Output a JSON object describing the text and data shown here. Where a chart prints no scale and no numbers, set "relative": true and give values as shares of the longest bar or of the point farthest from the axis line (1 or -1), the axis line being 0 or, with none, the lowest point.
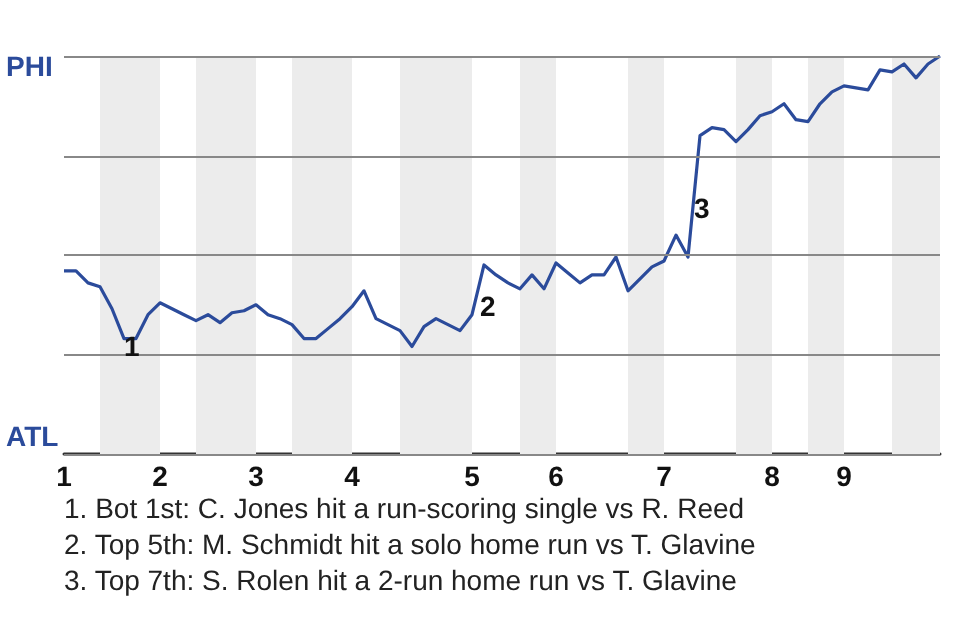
{
  "chart_data": {
    "type": "line",
    "relative": true,
    "categories": [
      "1",
      null,
      null,
      null,
      null,
      null,
      null,
      null,
      "2",
      null,
      null,
      null,
      null,
      null,
      null,
      null,
      "3",
      null,
      null,
      null,
      null,
      null,
      null,
      null,
      "4",
      null,
      null,
      null,
      null,
      null,
      null,
      null,
      null,
      null,
      "5",
      null,
      null,
      null,
      null,
      null,
      null,
      "6",
      null,
      null,
      null,
      null,
      null,
      null,
      null,
      null,
      "7",
      null,
      null,
      null,
      null,
      null,
      null,
      null,
      null,
      "8",
      null,
      null,
      null,
      null,
      null,
      "9",
      null,
      null,
      null,
      null,
      null,
      null,
      null,
      null
    ],
    "values": [
      0.46,
      0.46,
      0.43,
      0.42,
      0.365,
      0.29,
      0.29,
      0.35,
      0.38,
      0.365,
      0.35,
      0.335,
      0.35,
      0.33,
      0.355,
      0.36,
      0.375,
      0.35,
      0.34,
      0.325,
      0.29,
      0.29,
      0.315,
      0.34,
      0.37,
      0.41,
      0.34,
      0.325,
      0.31,
      0.27,
      0.32,
      0.34,
      0.325,
      0.31,
      0.35,
      0.475,
      0.45,
      0.43,
      0.415,
      0.45,
      0.415,
      0.48,
      0.455,
      0.43,
      0.45,
      0.45,
      0.495,
      0.41,
      0.44,
      0.47,
      0.485,
      0.55,
      0.495,
      0.8,
      0.82,
      0.815,
      0.785,
      0.815,
      0.85,
      0.86,
      0.88,
      0.84,
      0.835,
      0.88,
      0.91,
      0.925,
      0.92,
      0.915,
      0.965,
      0.96,
      0.98,
      0.945,
      0.98,
      1
    ],
    "color": "#2b4b9b",
    "grid": "y",
    "marker": "none",
    "annotations": [
      "PHI",
      "ATL",
      "1",
      "2",
      "3",
      "1. Bot 1st: C. Jones hit a run-scoring single vs R. Reed",
      "2. Top 5th: M. Schmidt hit a solo home run vs T. Glavine",
      "3. Top 7th: S. Rolen hit a 2-run home run vs T. Glavine"
    ]
  }
}
